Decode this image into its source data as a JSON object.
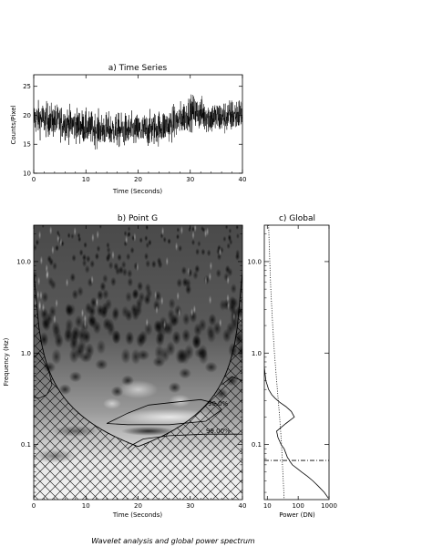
{
  "caption": "Wavelet analysis and global power spectrum",
  "chart_data": [
    {
      "panel": "a",
      "type": "line",
      "title": "a) Time Series",
      "xlabel": "Time (Seconds)",
      "ylabel": "Counts/Pixel",
      "xlim": [
        0,
        40
      ],
      "ylim": [
        10,
        27
      ],
      "xticks": [
        0,
        10,
        20,
        30,
        40
      ],
      "yticks": [
        10,
        15,
        20,
        25
      ],
      "series_profile": {
        "t": [
          0,
          2,
          4,
          6,
          8,
          10,
          12,
          14,
          16,
          18,
          20,
          22,
          24,
          26,
          28,
          30,
          32,
          34,
          36,
          38,
          40
        ],
        "mean": [
          19.5,
          19.3,
          19,
          18.7,
          18.3,
          17.9,
          17.6,
          17.5,
          17.4,
          17.4,
          17.3,
          17.5,
          17.9,
          18.4,
          19.2,
          20.6,
          20.3,
          19.6,
          19.6,
          19.9,
          20.3
        ],
        "spread": 2.6,
        "samples": 1300
      }
    },
    {
      "panel": "b",
      "type": "heatmap",
      "title": "b) Point G",
      "xlabel": "Time (Seconds)",
      "ylabel": "Frequency (Hz)",
      "xlim": [
        0,
        40
      ],
      "ylim": [
        0.025,
        25
      ],
      "yscale": "log",
      "xticks": [
        0,
        10,
        20,
        30,
        40
      ],
      "yticks": [
        0.1,
        1.0,
        10.0
      ],
      "yticklabels": [
        "0.1",
        "1.0",
        "10.0"
      ],
      "contour_labels": [
        "90.0%",
        "99.00%"
      ],
      "colormap": "grayscale"
    },
    {
      "panel": "c",
      "type": "line",
      "title": "c) Global",
      "xlabel": "Power (DN)",
      "xscale": "log",
      "xlim": [
        8,
        1000
      ],
      "xticks": [
        10,
        100,
        1000
      ],
      "xticklabels": [
        "10",
        "100",
        "1000"
      ],
      "yscale": "log",
      "ylim": [
        0.025,
        25
      ],
      "yticks": [
        0.1,
        1.0,
        10.0
      ],
      "yticklabels": [
        "0.1",
        "1.0",
        "10.0"
      ],
      "series": [
        {
          "style": "solid",
          "freq": [
            0.026,
            0.03,
            0.035,
            0.04,
            0.045,
            0.05,
            0.055,
            0.06,
            0.065,
            0.067,
            0.069,
            0.072,
            0.08,
            0.09,
            0.1,
            0.12,
            0.14,
            0.17,
            0.2,
            0.23,
            0.26,
            0.29,
            0.32,
            0.35,
            0.4,
            0.5,
            0.7
          ],
          "power": [
            950,
            700,
            450,
            300,
            200,
            130,
            90,
            65,
            55,
            52,
            50,
            45,
            40,
            35,
            28,
            22,
            20,
            40,
            75,
            60,
            40,
            25,
            18,
            14,
            11,
            9,
            8
          ]
        },
        {
          "style": "dotted",
          "freq": [
            0.026,
            0.04,
            0.06,
            0.1,
            0.2,
            0.5,
            1,
            2,
            5,
            10,
            25
          ],
          "power": [
            35,
            33,
            31,
            29,
            25,
            20,
            17,
            15,
            13,
            12,
            11
          ]
        }
      ],
      "horizontal_line": {
        "style": "dash-dot",
        "freq": 0.067
      }
    }
  ]
}
